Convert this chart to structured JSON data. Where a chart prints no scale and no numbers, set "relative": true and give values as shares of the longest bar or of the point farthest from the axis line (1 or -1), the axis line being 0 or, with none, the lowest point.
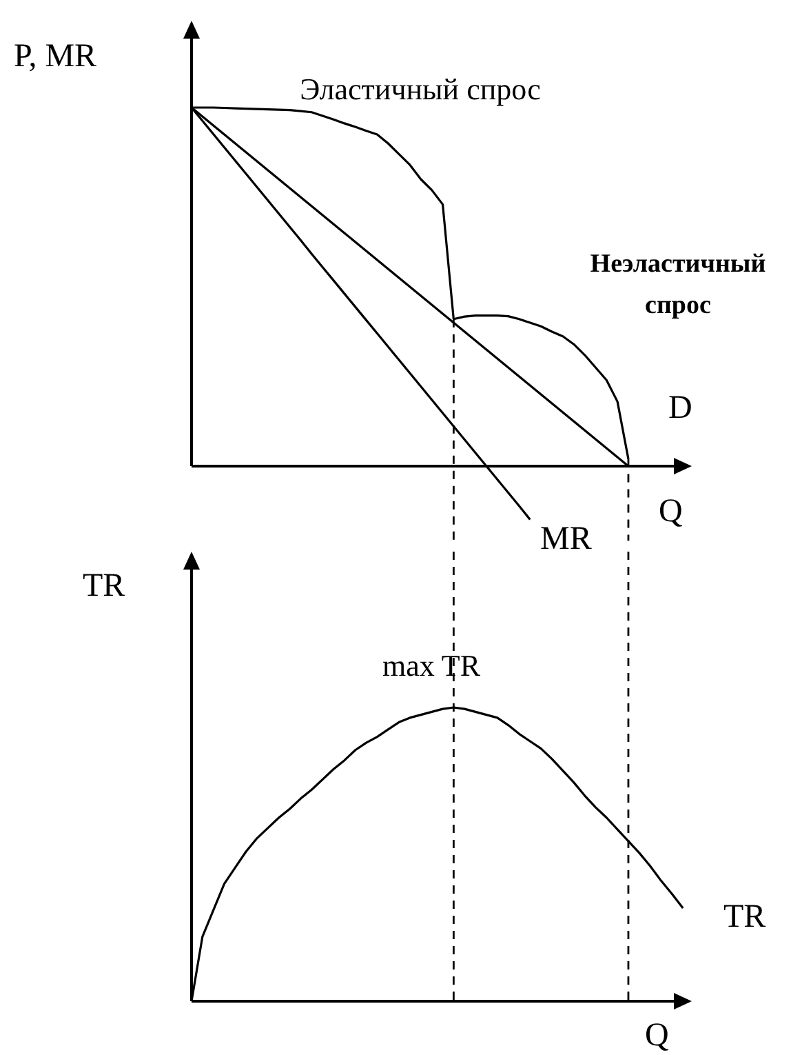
{
  "chart_data": [
    {
      "type": "line",
      "ylabel": "P, MR",
      "xlabel": "Q",
      "relative": true,
      "marker": "none",
      "line_style": "solid",
      "categories": [
        null,
        null,
        null,
        null,
        null,
        null,
        null,
        null,
        null,
        null,
        null,
        null,
        null,
        null,
        null,
        null,
        null,
        null,
        null,
        null,
        null,
        null,
        null,
        null,
        null,
        null,
        null,
        null,
        null,
        null,
        null,
        null,
        null,
        null,
        null,
        null,
        null,
        null,
        null,
        null,
        null,
        null,
        null,
        null,
        null,
        null
      ],
      "annotations": [
        "Эластичный спрос",
        "Неэластичный спрос"
      ],
      "series": [
        {
          "name": "D",
          "color": "#000000",
          "values": [
            1.0,
            0.975,
            0.95,
            0.925,
            0.9,
            0.875,
            0.85,
            0.825,
            0.8,
            0.775,
            0.75,
            0.725,
            0.7,
            0.675,
            0.65,
            0.625,
            0.6,
            0.575,
            0.55,
            0.525,
            0.5,
            0.475,
            0.45,
            0.425,
            0.4,
            0.375,
            0.35,
            0.325,
            0.3,
            0.275,
            0.25,
            0.225,
            0.2,
            0.175,
            0.15,
            0.125,
            0.1,
            0.075,
            0.05,
            0.025,
            0,
            null,
            null,
            null,
            null,
            null
          ]
        },
        {
          "name": "MR",
          "color": "#000000",
          "values": [
            1.0,
            0.963,
            0.926,
            0.889,
            0.852,
            0.815,
            0.778,
            0.741,
            0.704,
            0.667,
            0.63,
            0.592,
            0.555,
            0.518,
            0.481,
            0.444,
            0.407,
            0.37,
            0.333,
            0.296,
            0.259,
            0.222,
            0.185,
            0.148,
            0.111,
            0.074,
            0.037,
            0,
            -0.037,
            -0.074,
            -0.111,
            -0.149,
            null,
            null,
            null,
            null,
            null,
            null,
            null,
            null,
            null,
            null,
            null,
            null,
            null,
            null
          ]
        },
        {
          "color": "#000000",
          "values": [
            1.0,
            1.0,
            1.0,
            0.999,
            0.998,
            0.997,
            0.996,
            0.995,
            0.994,
            0.993,
            0.99,
            0.987,
            0.977,
            0.967,
            0.956,
            0.946,
            0.935,
            0.925,
            0.9,
            0.87,
            0.84,
            0.8,
            0.77,
            0.73,
            0.41,
            null,
            null,
            null,
            null,
            null,
            null,
            null,
            null,
            null,
            null,
            null,
            null,
            null,
            null,
            null,
            null,
            null,
            null,
            null,
            null,
            null
          ]
        },
        {
          "color": "#000000",
          "values": [
            null,
            null,
            null,
            null,
            null,
            null,
            null,
            null,
            null,
            null,
            null,
            null,
            null,
            null,
            null,
            null,
            null,
            null,
            null,
            null,
            null,
            null,
            null,
            null,
            0.41,
            0.417,
            0.42,
            0.42,
            0.42,
            0.418,
            0.41,
            0.4,
            0.39,
            0.375,
            0.362,
            0.34,
            0.31,
            0.275,
            0.24,
            0.18,
            0.02,
            null,
            null,
            null,
            null,
            null
          ]
        }
      ]
    },
    {
      "type": "line",
      "ylabel": "TR",
      "xlabel": "Q",
      "relative": true,
      "marker": "none",
      "line_style": "solid",
      "categories": [
        null,
        null,
        null,
        null,
        null,
        null,
        null,
        null,
        null,
        null,
        null,
        null,
        null,
        null,
        null,
        null,
        null,
        null,
        null,
        null,
        null,
        null,
        null,
        null,
        null,
        null,
        null,
        null,
        null,
        null,
        null,
        null,
        null,
        null,
        null,
        null,
        null,
        null,
        null,
        null,
        null,
        null,
        null,
        null,
        null,
        null
      ],
      "annotations": [
        "max TR"
      ],
      "series": [
        {
          "name": "TR",
          "color": "#000000",
          "values": [
            0,
            0.22,
            0.31,
            0.4,
            0.455,
            0.51,
            0.555,
            0.59,
            0.625,
            0.655,
            0.69,
            0.72,
            0.755,
            0.79,
            0.82,
            0.855,
            0.88,
            0.9,
            0.925,
            0.95,
            0.965,
            0.975,
            0.985,
            0.995,
            1.0,
            0.995,
            0.985,
            0.975,
            0.965,
            0.94,
            0.91,
            0.885,
            0.86,
            0.825,
            0.785,
            0.745,
            0.7,
            0.66,
            0.625,
            0.585,
            0.545,
            0.505,
            0.46,
            0.41,
            0.365,
            0.317
          ]
        }
      ]
    }
  ]
}
